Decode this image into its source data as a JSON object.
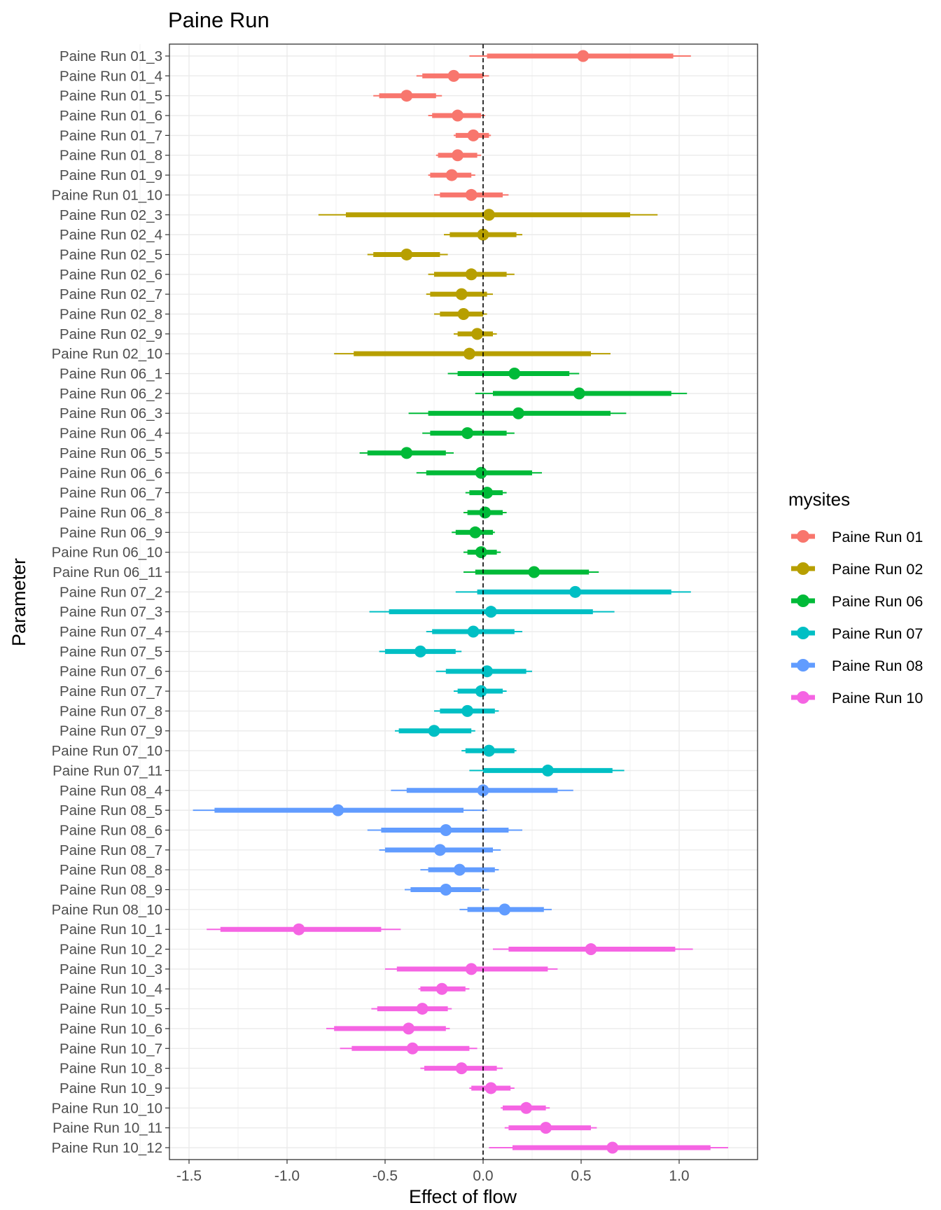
{
  "chart_data": {
    "type": "forest",
    "title": "Paine Run",
    "xlabel": "Effect of flow",
    "ylabel": "Parameter",
    "xlim": [
      -1.6,
      1.4
    ],
    "x_ticks": [
      -1.5,
      -1.0,
      -0.5,
      0.0,
      0.5,
      1.0
    ],
    "x_tick_labels": [
      "-1.5",
      "-1.0",
      "-0.5",
      "0.0",
      "0.5",
      "1.0"
    ],
    "reference_line": 0,
    "legend": {
      "title": "mysites",
      "position": "right",
      "entries": [
        {
          "name": "Paine Run 01",
          "color": "#F8766D"
        },
        {
          "name": "Paine Run 02",
          "color": "#B79F00"
        },
        {
          "name": "Paine Run 06",
          "color": "#00BA38"
        },
        {
          "name": "Paine Run 07",
          "color": "#00BFC4"
        },
        {
          "name": "Paine Run 08",
          "color": "#619CFF"
        },
        {
          "name": "Paine Run 10",
          "color": "#F564E3"
        }
      ]
    },
    "rows": [
      {
        "label": "Paine Run 01_3",
        "site": 0,
        "est": 0.51,
        "lo50": 0.02,
        "hi50": 0.97,
        "lo95": -0.07,
        "hi95": 1.06
      },
      {
        "label": "Paine Run 01_4",
        "site": 0,
        "est": -0.15,
        "lo50": -0.31,
        "hi50": 0.0,
        "lo95": -0.34,
        "hi95": 0.03
      },
      {
        "label": "Paine Run 01_5",
        "site": 0,
        "est": -0.39,
        "lo50": -0.53,
        "hi50": -0.24,
        "lo95": -0.56,
        "hi95": -0.21
      },
      {
        "label": "Paine Run 01_6",
        "site": 0,
        "est": -0.13,
        "lo50": -0.26,
        "hi50": -0.01,
        "lo95": -0.28,
        "hi95": 0.01
      },
      {
        "label": "Paine Run 01_7",
        "site": 0,
        "est": -0.05,
        "lo50": -0.14,
        "hi50": 0.03,
        "lo95": -0.15,
        "hi95": 0.04
      },
      {
        "label": "Paine Run 01_8",
        "site": 0,
        "est": -0.13,
        "lo50": -0.23,
        "hi50": -0.03,
        "lo95": -0.24,
        "hi95": -0.01
      },
      {
        "label": "Paine Run 01_9",
        "site": 0,
        "est": -0.16,
        "lo50": -0.27,
        "hi50": -0.06,
        "lo95": -0.28,
        "hi95": -0.04
      },
      {
        "label": "Paine Run 01_10",
        "site": 0,
        "est": -0.06,
        "lo50": -0.22,
        "hi50": 0.1,
        "lo95": -0.25,
        "hi95": 0.13
      },
      {
        "label": "Paine Run 02_3",
        "site": 1,
        "est": 0.03,
        "lo50": -0.7,
        "hi50": 0.75,
        "lo95": -0.84,
        "hi95": 0.89
      },
      {
        "label": "Paine Run 02_4",
        "site": 1,
        "est": 0.0,
        "lo50": -0.17,
        "hi50": 0.17,
        "lo95": -0.2,
        "hi95": 0.2
      },
      {
        "label": "Paine Run 02_5",
        "site": 1,
        "est": -0.39,
        "lo50": -0.56,
        "hi50": -0.22,
        "lo95": -0.59,
        "hi95": -0.18
      },
      {
        "label": "Paine Run 02_6",
        "site": 1,
        "est": -0.06,
        "lo50": -0.25,
        "hi50": 0.12,
        "lo95": -0.28,
        "hi95": 0.16
      },
      {
        "label": "Paine Run 02_7",
        "site": 1,
        "est": -0.11,
        "lo50": -0.27,
        "hi50": 0.02,
        "lo95": -0.29,
        "hi95": 0.05
      },
      {
        "label": "Paine Run 02_8",
        "site": 1,
        "est": -0.1,
        "lo50": -0.22,
        "hi50": 0.0,
        "lo95": -0.25,
        "hi95": 0.02
      },
      {
        "label": "Paine Run 02_9",
        "site": 1,
        "est": -0.03,
        "lo50": -0.13,
        "hi50": 0.05,
        "lo95": -0.15,
        "hi95": 0.07
      },
      {
        "label": "Paine Run 02_10",
        "site": 1,
        "est": -0.07,
        "lo50": -0.66,
        "hi50": 0.55,
        "lo95": -0.76,
        "hi95": 0.65
      },
      {
        "label": "Paine Run 06_1",
        "site": 2,
        "est": 0.16,
        "lo50": -0.13,
        "hi50": 0.44,
        "lo95": -0.18,
        "hi95": 0.49
      },
      {
        "label": "Paine Run 06_2",
        "site": 2,
        "est": 0.49,
        "lo50": 0.05,
        "hi50": 0.96,
        "lo95": -0.04,
        "hi95": 1.04
      },
      {
        "label": "Paine Run 06_3",
        "site": 2,
        "est": 0.18,
        "lo50": -0.28,
        "hi50": 0.65,
        "lo95": -0.38,
        "hi95": 0.73
      },
      {
        "label": "Paine Run 06_4",
        "site": 2,
        "est": -0.08,
        "lo50": -0.27,
        "hi50": 0.12,
        "lo95": -0.31,
        "hi95": 0.16
      },
      {
        "label": "Paine Run 06_5",
        "site": 2,
        "est": -0.39,
        "lo50": -0.59,
        "hi50": -0.19,
        "lo95": -0.63,
        "hi95": -0.15
      },
      {
        "label": "Paine Run 06_6",
        "site": 2,
        "est": -0.01,
        "lo50": -0.29,
        "hi50": 0.25,
        "lo95": -0.34,
        "hi95": 0.3
      },
      {
        "label": "Paine Run 06_7",
        "site": 2,
        "est": 0.02,
        "lo50": -0.07,
        "hi50": 0.1,
        "lo95": -0.09,
        "hi95": 0.12
      },
      {
        "label": "Paine Run 06_8",
        "site": 2,
        "est": 0.01,
        "lo50": -0.08,
        "hi50": 0.1,
        "lo95": -0.1,
        "hi95": 0.12
      },
      {
        "label": "Paine Run 06_9",
        "site": 2,
        "est": -0.04,
        "lo50": -0.14,
        "hi50": 0.05,
        "lo95": -0.16,
        "hi95": 0.06
      },
      {
        "label": "Paine Run 06_10",
        "site": 2,
        "est": -0.01,
        "lo50": -0.08,
        "hi50": 0.07,
        "lo95": -0.1,
        "hi95": 0.09
      },
      {
        "label": "Paine Run 06_11",
        "site": 2,
        "est": 0.26,
        "lo50": -0.04,
        "hi50": 0.54,
        "lo95": -0.1,
        "hi95": 0.59
      },
      {
        "label": "Paine Run 07_2",
        "site": 3,
        "est": 0.47,
        "lo50": -0.03,
        "hi50": 0.96,
        "lo95": -0.14,
        "hi95": 1.06
      },
      {
        "label": "Paine Run 07_3",
        "site": 3,
        "est": 0.04,
        "lo50": -0.48,
        "hi50": 0.56,
        "lo95": -0.58,
        "hi95": 0.67
      },
      {
        "label": "Paine Run 07_4",
        "site": 3,
        "est": -0.05,
        "lo50": -0.26,
        "hi50": 0.16,
        "lo95": -0.29,
        "hi95": 0.2
      },
      {
        "label": "Paine Run 07_5",
        "site": 3,
        "est": -0.32,
        "lo50": -0.5,
        "hi50": -0.14,
        "lo95": -0.53,
        "hi95": -0.11
      },
      {
        "label": "Paine Run 07_6",
        "site": 3,
        "est": 0.02,
        "lo50": -0.19,
        "hi50": 0.22,
        "lo95": -0.24,
        "hi95": 0.25
      },
      {
        "label": "Paine Run 07_7",
        "site": 3,
        "est": -0.01,
        "lo50": -0.13,
        "hi50": 0.1,
        "lo95": -0.15,
        "hi95": 0.12
      },
      {
        "label": "Paine Run 07_8",
        "site": 3,
        "est": -0.08,
        "lo50": -0.22,
        "hi50": 0.06,
        "lo95": -0.25,
        "hi95": 0.08
      },
      {
        "label": "Paine Run 07_9",
        "site": 3,
        "est": -0.25,
        "lo50": -0.43,
        "hi50": -0.06,
        "lo95": -0.45,
        "hi95": -0.04
      },
      {
        "label": "Paine Run 07_10",
        "site": 3,
        "est": 0.03,
        "lo50": -0.09,
        "hi50": 0.16,
        "lo95": -0.11,
        "hi95": 0.17
      },
      {
        "label": "Paine Run 07_11",
        "site": 3,
        "est": 0.33,
        "lo50": 0.0,
        "hi50": 0.66,
        "lo95": -0.07,
        "hi95": 0.72
      },
      {
        "label": "Paine Run 08_4",
        "site": 4,
        "est": 0.0,
        "lo50": -0.39,
        "hi50": 0.38,
        "lo95": -0.47,
        "hi95": 0.46
      },
      {
        "label": "Paine Run 08_5",
        "site": 4,
        "est": -0.74,
        "lo50": -1.37,
        "hi50": -0.1,
        "lo95": -1.48,
        "hi95": 0.02
      },
      {
        "label": "Paine Run 08_6",
        "site": 4,
        "est": -0.19,
        "lo50": -0.52,
        "hi50": 0.13,
        "lo95": -0.59,
        "hi95": 0.2
      },
      {
        "label": "Paine Run 08_7",
        "site": 4,
        "est": -0.22,
        "lo50": -0.5,
        "hi50": 0.05,
        "lo95": -0.53,
        "hi95": 0.09
      },
      {
        "label": "Paine Run 08_8",
        "site": 4,
        "est": -0.12,
        "lo50": -0.28,
        "hi50": 0.06,
        "lo95": -0.32,
        "hi95": 0.08
      },
      {
        "label": "Paine Run 08_9",
        "site": 4,
        "est": -0.19,
        "lo50": -0.37,
        "hi50": -0.01,
        "lo95": -0.4,
        "hi95": 0.03
      },
      {
        "label": "Paine Run 08_10",
        "site": 4,
        "est": 0.11,
        "lo50": -0.08,
        "hi50": 0.31,
        "lo95": -0.12,
        "hi95": 0.35
      },
      {
        "label": "Paine Run 10_1",
        "site": 5,
        "est": -0.94,
        "lo50": -1.34,
        "hi50": -0.52,
        "lo95": -1.41,
        "hi95": -0.42
      },
      {
        "label": "Paine Run 10_2",
        "site": 5,
        "est": 0.55,
        "lo50": 0.13,
        "hi50": 0.98,
        "lo95": 0.05,
        "hi95": 1.07
      },
      {
        "label": "Paine Run 10_3",
        "site": 5,
        "est": -0.06,
        "lo50": -0.44,
        "hi50": 0.33,
        "lo95": -0.5,
        "hi95": 0.38
      },
      {
        "label": "Paine Run 10_4",
        "site": 5,
        "est": -0.21,
        "lo50": -0.32,
        "hi50": -0.09,
        "lo95": -0.33,
        "hi95": -0.07
      },
      {
        "label": "Paine Run 10_5",
        "site": 5,
        "est": -0.31,
        "lo50": -0.54,
        "hi50": -0.18,
        "lo95": -0.57,
        "hi95": -0.16
      },
      {
        "label": "Paine Run 10_6",
        "site": 5,
        "est": -0.38,
        "lo50": -0.76,
        "hi50": -0.19,
        "lo95": -0.8,
        "hi95": -0.17
      },
      {
        "label": "Paine Run 10_7",
        "site": 5,
        "est": -0.36,
        "lo50": -0.67,
        "hi50": -0.07,
        "lo95": -0.73,
        "hi95": -0.03
      },
      {
        "label": "Paine Run 10_8",
        "site": 5,
        "est": -0.11,
        "lo50": -0.3,
        "hi50": 0.07,
        "lo95": -0.32,
        "hi95": 0.1
      },
      {
        "label": "Paine Run 10_9",
        "site": 5,
        "est": 0.04,
        "lo50": -0.06,
        "hi50": 0.14,
        "lo95": -0.07,
        "hi95": 0.16
      },
      {
        "label": "Paine Run 10_10",
        "site": 5,
        "est": 0.22,
        "lo50": 0.1,
        "hi50": 0.32,
        "lo95": 0.09,
        "hi95": 0.34
      },
      {
        "label": "Paine Run 10_11",
        "site": 5,
        "est": 0.32,
        "lo50": 0.13,
        "hi50": 0.55,
        "lo95": 0.11,
        "hi95": 0.58
      },
      {
        "label": "Paine Run 10_12",
        "site": 5,
        "est": 0.66,
        "lo50": 0.15,
        "hi50": 1.16,
        "lo95": 0.03,
        "hi95": 1.25
      }
    ]
  }
}
